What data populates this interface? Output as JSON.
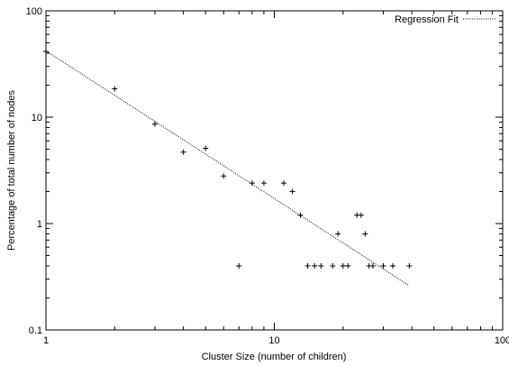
{
  "chart_data": {
    "type": "scatter",
    "title": "",
    "xlabel": "Cluster Size (number of children)",
    "ylabel": "Percentage of total number of nodes",
    "xscale": "log",
    "yscale": "log",
    "xlim": [
      1,
      100
    ],
    "ylim": [
      0.1,
      100
    ],
    "x_ticks": [
      1,
      10,
      100
    ],
    "x_tick_labels": [
      "1",
      "10",
      "100"
    ],
    "y_ticks": [
      0.1,
      1,
      10,
      100
    ],
    "y_tick_labels": [
      "0.1",
      "1",
      "10",
      "100"
    ],
    "grid": false,
    "legend_position": "top-right",
    "series": [
      {
        "type": "scatter",
        "marker": "+",
        "color": "#000000",
        "points": [
          [
            1,
            41.5
          ],
          [
            2,
            18.5
          ],
          [
            3,
            8.6
          ],
          [
            4,
            4.7
          ],
          [
            5,
            5.1
          ],
          [
            6,
            2.8
          ],
          [
            7,
            0.4
          ],
          [
            8,
            2.4
          ],
          [
            9,
            2.4
          ],
          [
            11,
            2.4
          ],
          [
            12,
            2.0
          ],
          [
            13,
            1.2
          ],
          [
            14,
            0.4
          ],
          [
            15,
            0.4
          ],
          [
            16,
            0.4
          ],
          [
            18,
            0.4
          ],
          [
            19,
            0.8
          ],
          [
            20,
            0.4
          ],
          [
            21,
            0.4
          ],
          [
            23,
            1.2
          ],
          [
            24,
            1.2
          ],
          [
            25,
            0.8
          ],
          [
            26,
            0.4
          ],
          [
            27,
            0.4
          ],
          [
            30,
            0.4
          ],
          [
            33,
            0.4
          ],
          [
            39,
            0.4
          ]
        ]
      },
      {
        "name": "Regression Fit",
        "type": "line",
        "style": "dotted",
        "color": "#000000",
        "points": [
          [
            1,
            42
          ],
          [
            39,
            0.26
          ]
        ]
      }
    ]
  }
}
